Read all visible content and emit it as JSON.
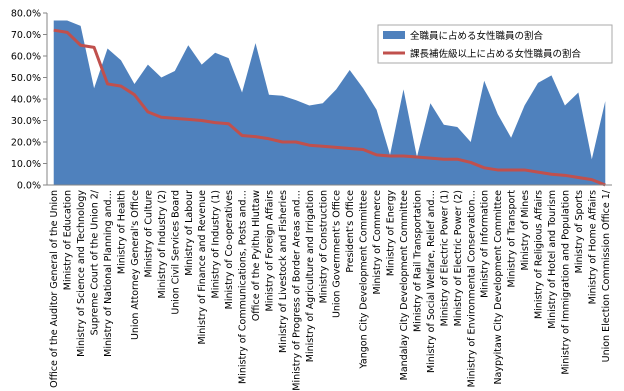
{
  "chart_data": {
    "type": "area",
    "categories": [
      "Office of the Auditor General of the Union",
      "Ministry of Education",
      "Ministry of Science and Technology",
      "Supreme Court of the Union 2/",
      "Ministry of National Planning and…",
      "Ministry of Health",
      "Union Attorney General's Office",
      "Ministry of Culture",
      "Ministry of Industry (2)",
      "Union Civil Services Board",
      "Ministry of Labour",
      "Ministry of Finance and Revenue",
      "Ministry of Industry (1)",
      "Ministry of Co-operatives",
      "Ministry of Communications, Posts and…",
      "Office of the Pyithu Hluttaw",
      "Ministry of Foreign Affairs",
      "Ministry of Livestock and Fisheries",
      "Ministry of Progress of Border Areas and…",
      "Ministry of Agriculture and Irrigation",
      "Ministry of Construction",
      "Union Government's Office",
      "President's Office",
      "Yangon City Development Committee",
      "Ministry of Commerce",
      "Ministry of Energy",
      "Mandalay City Development Committee",
      "Ministry of Rail Transportation",
      "Ministry of Social Welfare, Relief and…",
      "Ministry of Electric Power (1)",
      "Ministry of Electric Power (2)",
      "Ministry of Environmental Conservation…",
      "Ministry of Information",
      "Naypyitaw City Development Committee",
      "Ministry of Transport",
      "Ministry of Mines",
      "Ministry of Religious Affairs",
      "Ministry of Hotel and Tourism",
      "Ministry of Immigration and Population",
      "Ministry of Sports",
      "Ministry of Home Affairs",
      "Union Election Commission Office 1/"
    ],
    "series": [
      {
        "name": "全職員に占める女性職員の割合",
        "type": "area",
        "color": "#4f81bd",
        "values": [
          76.5,
          76.5,
          74,
          45,
          63.5,
          58,
          47,
          56,
          50,
          53,
          65,
          56,
          61.5,
          59,
          43,
          66,
          42,
          41.5,
          39.5,
          37,
          38,
          44.5,
          53.5,
          45,
          35,
          14,
          44.5,
          13,
          38,
          28,
          27,
          20,
          48.5,
          33,
          22,
          37,
          47.5,
          51,
          37,
          43,
          12,
          39
        ]
      },
      {
        "name": "課長補佐級以上に占める女性職員の割合",
        "type": "line",
        "color": "#c0504d",
        "values": [
          72,
          71,
          65,
          64,
          47,
          46,
          42,
          34,
          31.5,
          31,
          30.5,
          30,
          29,
          28.5,
          23,
          22.5,
          21.5,
          20,
          20,
          18.5,
          18,
          17.5,
          17,
          16.5,
          14,
          13.5,
          13.5,
          13,
          12.5,
          12,
          12,
          10.5,
          8,
          7,
          7,
          7,
          6,
          5,
          4.5,
          3.5,
          2.5,
          0
        ]
      }
    ],
    "ylim": [
      0,
      80
    ],
    "yticks": [
      {
        "value": 0,
        "label": "0.0%"
      },
      {
        "value": 10,
        "label": "10.0%"
      },
      {
        "value": 20,
        "label": "20.0%"
      },
      {
        "value": 30,
        "label": "30.0%"
      },
      {
        "value": 40,
        "label": "40.0%"
      },
      {
        "value": 50,
        "label": "50.0%"
      },
      {
        "value": 60,
        "label": "60.0%"
      },
      {
        "value": 70,
        "label": "70.0%"
      },
      {
        "value": 80,
        "label": "80.0%"
      }
    ],
    "grid": false,
    "legend": "top-right"
  }
}
